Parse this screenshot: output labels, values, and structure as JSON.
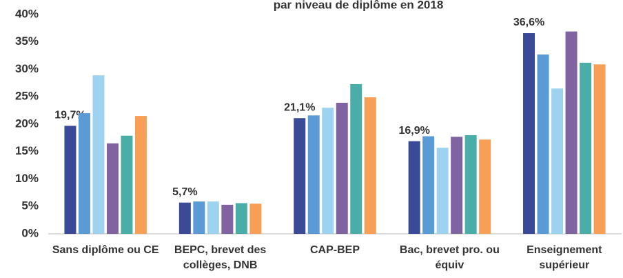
{
  "chart_data": {
    "type": "bar",
    "title": "par niveau de diplôme en 2018",
    "categories": [
      "Sans diplôme ou CE",
      "BEPC, brevet des collèges, DNB",
      "CAP-BEP",
      "Bac, brevet pro. ou équiv",
      "Enseignement supérieur"
    ],
    "series": [
      {
        "color": "#3b4a97",
        "values": [
          19.7,
          5.7,
          21.1,
          16.9,
          36.6
        ],
        "value_labels": [
          "19,7%",
          "5,7%",
          "21,1%",
          "16,9%",
          "36,6%"
        ]
      },
      {
        "color": "#5b9bd5",
        "values": [
          22.0,
          5.9,
          21.6,
          17.8,
          32.7
        ]
      },
      {
        "color": "#9dd3f0",
        "values": [
          28.9,
          5.9,
          23.0,
          15.7,
          26.5
        ]
      },
      {
        "color": "#8064a2",
        "values": [
          16.5,
          5.3,
          23.9,
          17.7,
          36.9
        ]
      },
      {
        "color": "#4aada8",
        "values": [
          17.9,
          5.6,
          27.3,
          18.0,
          31.2
        ]
      },
      {
        "color": "#f79f56",
        "values": [
          21.5,
          5.5,
          24.9,
          17.2,
          30.9
        ]
      }
    ],
    "ylim": [
      0,
      40
    ],
    "yticks": [
      {
        "value": 0,
        "label": "0%"
      },
      {
        "value": 5,
        "label": "5%"
      },
      {
        "value": 10,
        "label": "10%"
      },
      {
        "value": 15,
        "label": "15%"
      },
      {
        "value": 20,
        "label": "20%"
      },
      {
        "value": 25,
        "label": "25%"
      },
      {
        "value": 30,
        "label": "30%"
      },
      {
        "value": 35,
        "label": "35%"
      },
      {
        "value": 40,
        "label": "40%"
      }
    ],
    "grid": false
  }
}
